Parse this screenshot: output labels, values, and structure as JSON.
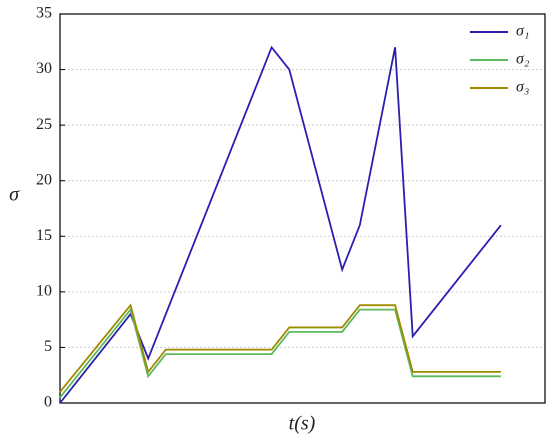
{
  "chart_data": {
    "type": "line",
    "x_label": "t(s)",
    "y_label": "σ",
    "xlim": [
      0,
      27.5
    ],
    "ylim": [
      0,
      35
    ],
    "yticks": [
      0,
      5,
      10,
      15,
      20,
      25,
      30,
      35
    ],
    "grid": true,
    "legend": "top-right",
    "series": [
      {
        "name": "σ₁",
        "color": "#2b1fb0",
        "x": [
          0,
          4,
          5,
          12,
          13,
          16,
          17,
          19,
          20,
          25
        ],
        "values": [
          0,
          8,
          4,
          32,
          30,
          12,
          16,
          32,
          6,
          16
        ]
      },
      {
        "name": "σ₂",
        "color": "#5cb85c",
        "x": [
          0,
          4,
          5,
          6,
          12,
          13,
          16,
          17,
          19,
          20,
          25
        ],
        "values": [
          0.5,
          8.4,
          2.4,
          4.4,
          4.4,
          6.4,
          6.4,
          8.4,
          8.4,
          2.4,
          2.4
        ]
      },
      {
        "name": "σ₃",
        "color": "#a08a00",
        "x": [
          0,
          4,
          5,
          6,
          12,
          13,
          16,
          17,
          19,
          20,
          25
        ],
        "values": [
          1,
          8.8,
          2.8,
          4.8,
          4.8,
          6.8,
          6.8,
          8.8,
          8.8,
          2.8,
          2.8
        ]
      }
    ]
  }
}
